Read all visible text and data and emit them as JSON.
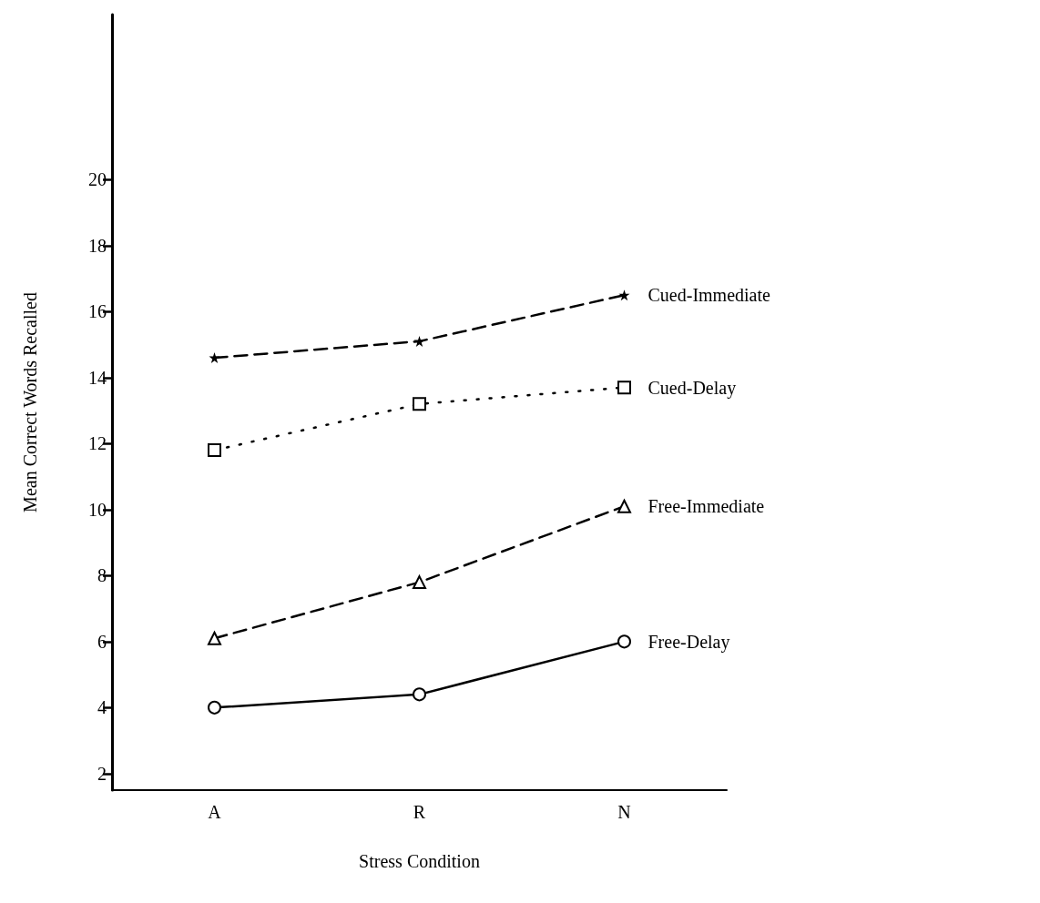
{
  "chart_data": {
    "type": "line",
    "xlabel": "Stress Condition",
    "ylabel": "Mean Correct Words Recalled",
    "categories": [
      "A",
      "R",
      "N"
    ],
    "series": [
      {
        "name": "Cued-Immediate",
        "color": "#000000",
        "values": [
          14.6,
          15.1,
          16.5
        ],
        "marker": "star",
        "line_style": "dashed"
      },
      {
        "name": "Cued-Delay",
        "color": "#000000",
        "values": [
          11.8,
          13.2,
          13.7
        ],
        "marker": "square",
        "line_style": "dotted"
      },
      {
        "name": "Free-Immediate",
        "color": "#000000",
        "values": [
          6.1,
          7.8,
          10.1
        ],
        "marker": "triangle",
        "line_style": "dashed"
      },
      {
        "name": "Free-Delay",
        "color": "#000000",
        "values": [
          4.0,
          4.4,
          6.0
        ],
        "marker": "circle",
        "line_style": "solid"
      }
    ],
    "ylim": [
      1.5,
      25
    ],
    "yticks": [
      2,
      4,
      6,
      8,
      10,
      12,
      14,
      16,
      18,
      20
    ],
    "grid": false,
    "legend": false
  }
}
